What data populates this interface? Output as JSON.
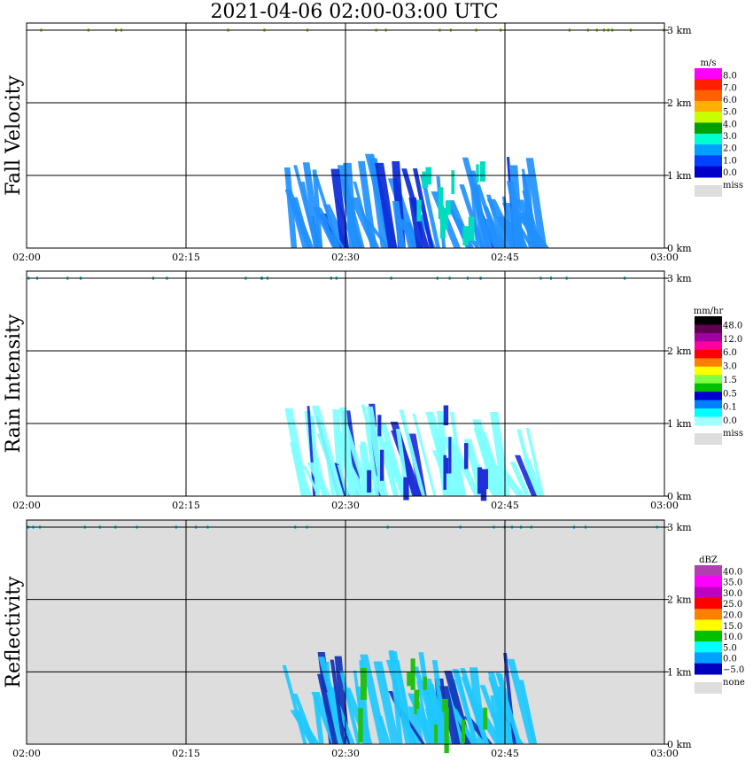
{
  "title": "2021-04-06   02:00-03:00 UTC",
  "x_ticks": [
    "02:00",
    "02:15",
    "02:30",
    "02:45",
    "03:00"
  ],
  "y_ticks": [
    "0 km",
    "1 km",
    "2 km",
    "3 km"
  ],
  "colors": {
    "grid": "#000000",
    "miss": "#dddddd",
    "fv_fill": "#2190ff",
    "fv_dark": "#0a2ad8",
    "fv_accent": "#00dcc0",
    "ri_fill": "#80ffff",
    "ri_dark": "#2030d8",
    "zr_fill": "#1ec8ff",
    "zr_dark": "#1232b8",
    "zr_accent": "#22c010"
  },
  "chart_data": [
    {
      "type": "heatmap",
      "title": "Fall Velocity",
      "x_range": [
        "02:00",
        "03:00"
      ],
      "y_range_km": [
        0,
        3
      ],
      "legend": {
        "unit": "m/s",
        "labels": [
          "8.0",
          "7.0",
          "6.0",
          "5.0",
          "4.0",
          "3.0",
          "2.0",
          "1.0",
          "0.0"
        ],
        "colors": [
          "#ff00ff",
          "#ff2000",
          "#ff6000",
          "#ffb000",
          "#c8ff00",
          "#00a000",
          "#00ffd0",
          "#00a0ff",
          "#0040ff",
          "#0000c8"
        ],
        "miss_label": "miss"
      },
      "echo_period": [
        "02:24",
        "02:48"
      ],
      "echo_top_km": 1.3,
      "strip_height_km": 3.0
    },
    {
      "type": "heatmap",
      "title": "Rain Intensity",
      "x_range": [
        "02:00",
        "03:00"
      ],
      "y_range_km": [
        0,
        3
      ],
      "legend": {
        "unit": "mm/hr",
        "labels": [
          "48.0",
          "12.0",
          "6.0",
          "3.0",
          "1.5",
          "0.5",
          "0.1",
          "0.0"
        ],
        "colors": [
          "#000000",
          "#600050",
          "#a000a0",
          "#ff00a0",
          "#ff0000",
          "#ff8000",
          "#ffff00",
          "#80ff40",
          "#00c000",
          "#0000d0",
          "#0080ff",
          "#00ffff",
          "#a0ffff"
        ],
        "miss_label": "miss"
      },
      "echo_period": [
        "02:24",
        "02:48"
      ],
      "echo_top_km": 1.3,
      "strip_height_km": 3.0
    },
    {
      "type": "heatmap",
      "title": "Reflectivity",
      "x_range": [
        "02:00",
        "03:00"
      ],
      "y_range_km": [
        0,
        3
      ],
      "legend": {
        "unit": "dBZ",
        "labels": [
          "40.0",
          "35.0",
          "30.0",
          "25.0",
          "20.0",
          "15.0",
          "10.0",
          "5.0",
          "0.0",
          "−5.0"
        ],
        "colors": [
          "#b040b0",
          "#ff00ff",
          "#c000c0",
          "#ff0000",
          "#ff8000",
          "#ffff00",
          "#00c000",
          "#00ffff",
          "#00a0ff",
          "#0000c0"
        ],
        "miss_label": "none"
      },
      "echo_period": [
        "02:24",
        "02:48"
      ],
      "echo_top_km": 1.3,
      "strip_height_km": 3.0
    }
  ]
}
